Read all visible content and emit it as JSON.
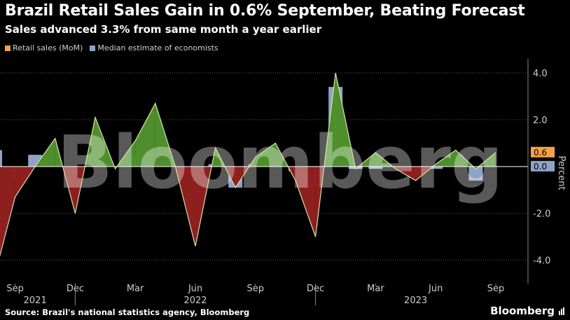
{
  "header": {
    "title": "Brazil Retail Sales Gain in 0.6% September, Beating Forecast",
    "subtitle": "Sales advanced 3.3% from same month a year earlier"
  },
  "legend": {
    "items": [
      {
        "label": "Retail sales (MoM)",
        "color": "#f7a249"
      },
      {
        "label": "Median estimate of economists",
        "color": "#8ea3c8"
      }
    ]
  },
  "footer": {
    "source": "Source: Brazil's national statistics agency, Bloomberg",
    "brand": "Bloomberg"
  },
  "watermark": "Bloomberg",
  "colors": {
    "positive_fill": "#4e8f2c",
    "negative_fill": "#8e1f1f",
    "line": "#d7e3a8",
    "estimate_bar": "#8ea3c8",
    "label_retail_bg": "#f7a249",
    "label_estimate_bg": "#8ea3c8",
    "grid": "#555555",
    "axis_text": "#cccccc"
  },
  "chart_data": {
    "type": "area",
    "x": [
      "2021-08",
      "2021-09",
      "2021-10",
      "2021-11",
      "2021-12",
      "2022-01",
      "2022-02",
      "2022-03",
      "2022-04",
      "2022-05",
      "2022-06",
      "2022-07",
      "2022-08",
      "2022-09",
      "2022-10",
      "2022-11",
      "2022-12",
      "2023-01",
      "2023-02",
      "2023-03",
      "2023-04",
      "2023-05",
      "2023-06",
      "2023-07",
      "2023-08",
      "2023-09"
    ],
    "series": [
      {
        "name": "Retail sales (MoM)",
        "type": "area",
        "values": [
          -4.6,
          -1.3,
          0.0,
          1.2,
          -2.0,
          2.1,
          -0.1,
          1.1,
          2.7,
          0.0,
          -3.4,
          0.8,
          -0.9,
          0.4,
          1.0,
          -0.6,
          -3.0,
          4.0,
          -0.1,
          0.6,
          -0.1,
          -0.6,
          0.1,
          0.7,
          -0.1,
          0.6
        ]
      },
      {
        "name": "Median estimate of economists",
        "type": "bar",
        "values": [
          0.7,
          -0.6,
          0.5,
          0.0,
          -0.5,
          0.3,
          0.0,
          0.4,
          0.3,
          0.0,
          -1.0,
          0.1,
          -0.9,
          0.1,
          0.3,
          -0.2,
          -0.8,
          3.4,
          -0.1,
          -0.1,
          0.0,
          -0.3,
          -0.1,
          0.5,
          -0.6,
          0.0
        ]
      }
    ],
    "ylim": [
      -5,
      4.6
    ],
    "yticks": [
      4.0,
      2.0,
      0,
      -2.0,
      -4.0
    ],
    "ytick_labels": [
      "4.0",
      "2.0",
      "",
      "-2.0",
      "-4.0"
    ],
    "ylabel": "Percent",
    "xtick_labels": [
      {
        "label": "Sep",
        "x": "2021-09"
      },
      {
        "label": "Dec",
        "x": "2021-12"
      },
      {
        "label": "Mar",
        "x": "2022-03"
      },
      {
        "label": "Jun",
        "x": "2022-06"
      },
      {
        "label": "Sep",
        "x": "2022-09"
      },
      {
        "label": "Dec",
        "x": "2022-12"
      },
      {
        "label": "Mar",
        "x": "2023-03"
      },
      {
        "label": "Jun",
        "x": "2023-06"
      },
      {
        "label": "Sep",
        "x": "2023-09"
      }
    ],
    "year_labels": [
      {
        "label": "2021",
        "x": "2021-10"
      },
      {
        "label": "2022",
        "x": "2022-06"
      },
      {
        "label": "2023",
        "x": "2023-05"
      }
    ],
    "year_separators": [
      "2021-12",
      "2022-12"
    ],
    "end_labels": [
      {
        "label": "0.6",
        "series": "Retail sales (MoM)"
      },
      {
        "label": "0.0",
        "series": "Median estimate of economists"
      }
    ],
    "grid": true,
    "legend_position": "top-left"
  }
}
